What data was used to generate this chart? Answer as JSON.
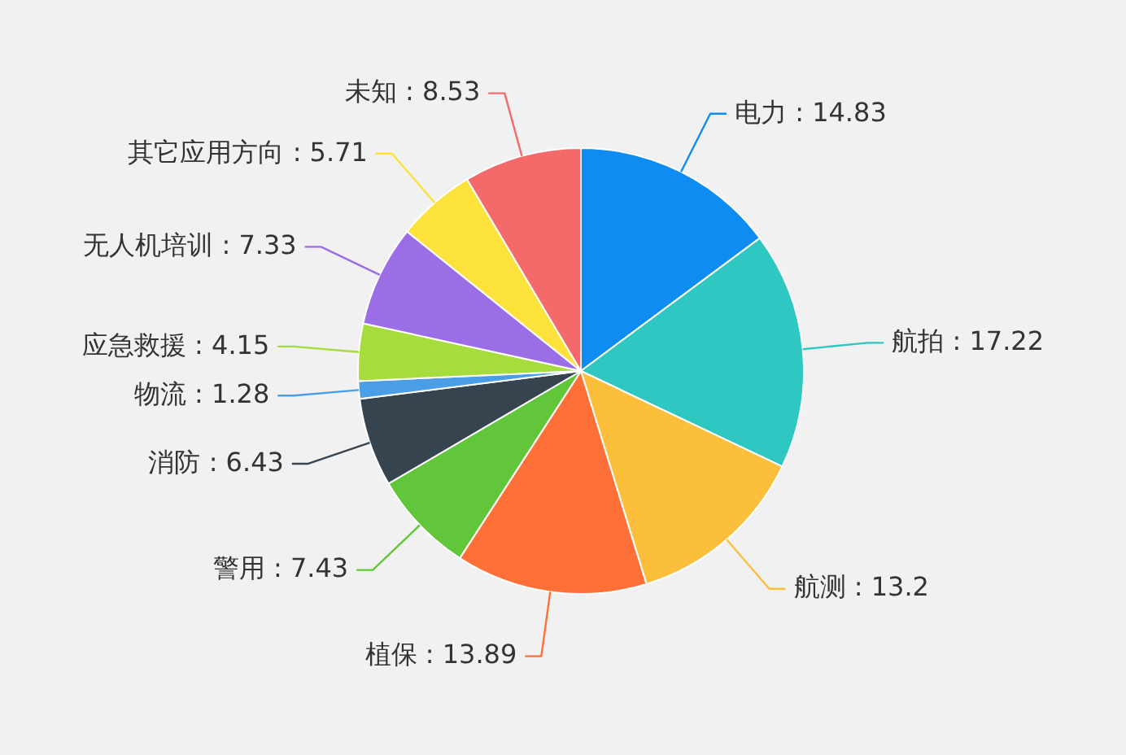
{
  "chart_data": {
    "type": "pie",
    "categories": [
      "电力",
      "航拍",
      "航测",
      "植保",
      "警用",
      "消防",
      "物流",
      "应急救援",
      "无人机培训",
      "其它应用方向",
      "未知"
    ],
    "values": [
      14.83,
      17.22,
      13.2,
      13.89,
      7.43,
      6.43,
      1.28,
      4.15,
      7.33,
      5.71,
      8.53
    ],
    "value_labels": [
      ": 14.83",
      ": 17.22",
      ": 13.2",
      ": 13.89",
      ": 7.43",
      ": 6.43",
      ": 1.28",
      ": 4.15",
      ": 7.33",
      ": 5.71",
      ": 8.53"
    ],
    "colors": [
      "#0e8cf2",
      "#2ec7c2",
      "#fbbf3c",
      "#ff7038",
      "#62c63a",
      "#36444f",
      "#4a9ee6",
      "#a6dc3c",
      "#9b6ee6",
      "#fde23c",
      "#f46a6a"
    ]
  }
}
